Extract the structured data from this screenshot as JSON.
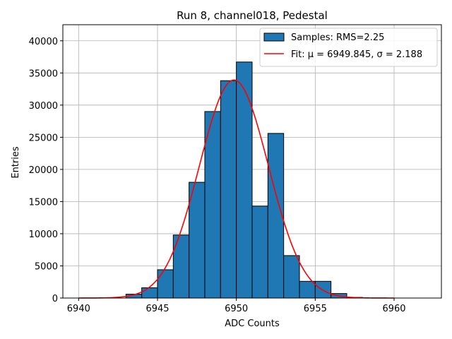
{
  "chart_data": {
    "type": "bar",
    "title": "Run 8, channel018, Pedestal",
    "xlabel": "ADC Counts",
    "ylabel": "Entries",
    "xlim": [
      6939,
      6963
    ],
    "ylim": [
      0,
      42500
    ],
    "xticks": [
      6940,
      6945,
      6950,
      6955,
      6960
    ],
    "yticks": [
      0,
      5000,
      10000,
      15000,
      20000,
      25000,
      30000,
      35000,
      40000
    ],
    "grid": true,
    "legend_position": "top-right",
    "bar_color": "#1f77b4",
    "fit_color": "#ff0000",
    "bins": [
      {
        "left": 6940,
        "right": 6941,
        "value": 0
      },
      {
        "left": 6941,
        "right": 6942,
        "value": 0
      },
      {
        "left": 6942,
        "right": 6943,
        "value": 0
      },
      {
        "left": 6943,
        "right": 6944,
        "value": 600
      },
      {
        "left": 6944,
        "right": 6945,
        "value": 1600
      },
      {
        "left": 6945,
        "right": 6946,
        "value": 4400
      },
      {
        "left": 6946,
        "right": 6947,
        "value": 9800
      },
      {
        "left": 6947,
        "right": 6948,
        "value": 18000
      },
      {
        "left": 6948,
        "right": 6949,
        "value": 29000
      },
      {
        "left": 6949,
        "right": 6950,
        "value": 33800
      },
      {
        "left": 6950,
        "right": 6951,
        "value": 36700
      },
      {
        "left": 6951,
        "right": 6952,
        "value": 14300
      },
      {
        "left": 6952,
        "right": 6953,
        "value": 25600
      },
      {
        "left": 6953,
        "right": 6954,
        "value": 6600
      },
      {
        "left": 6954,
        "right": 6955,
        "value": 2600
      },
      {
        "left": 6955,
        "right": 6956,
        "value": 2600
      },
      {
        "left": 6956,
        "right": 6957,
        "value": 700
      },
      {
        "left": 6957,
        "right": 6958,
        "value": 100
      },
      {
        "left": 6958,
        "right": 6959,
        "value": 0
      },
      {
        "left": 6959,
        "right": 6960,
        "value": 0
      },
      {
        "left": 6960,
        "right": 6961,
        "value": 0
      },
      {
        "left": 6961,
        "right": 6962,
        "value": 0
      }
    ],
    "fit": {
      "mu": 6949.845,
      "sigma": 2.188,
      "amplitude": 33900,
      "x_range": [
        6940,
        6960
      ]
    },
    "legend": {
      "samples_label": "Samples: RMS=2.25",
      "fit_label": "Fit: μ = 6949.845, σ = 2.188"
    }
  }
}
